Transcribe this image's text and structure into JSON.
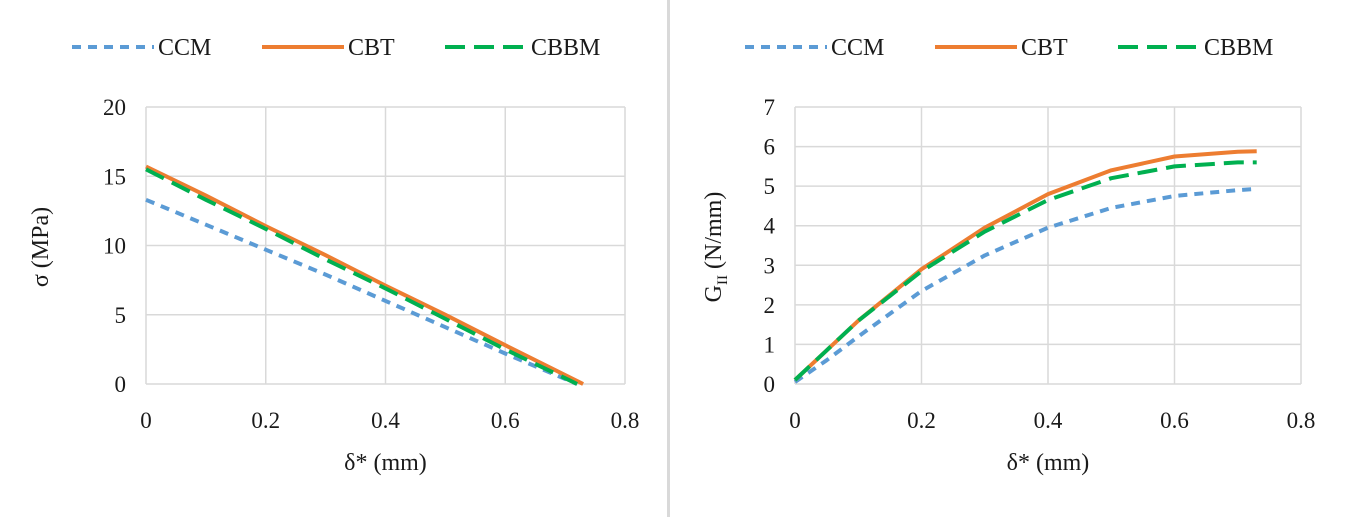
{
  "chart_data": [
    {
      "type": "line",
      "xlabel": "δ* (mm)",
      "ylabel": "σ (MPa)",
      "xlim": [
        0,
        0.8
      ],
      "ylim": [
        0,
        20
      ],
      "xticks": [
        "0",
        "0.2",
        "0.4",
        "0.6",
        "0.8"
      ],
      "yticks": [
        "0",
        "5",
        "10",
        "15",
        "20"
      ],
      "grid": true,
      "legend_position": "top",
      "series": [
        {
          "name": "CCM",
          "color": "#5b9bd5",
          "style": "dash",
          "x": [
            0,
            0.1,
            0.2,
            0.3,
            0.4,
            0.5,
            0.6,
            0.72
          ],
          "y": [
            13.3,
            11.5,
            9.7,
            7.9,
            6.0,
            4.1,
            2.2,
            0.0
          ]
        },
        {
          "name": "CBT",
          "color": "#ed7d31",
          "style": "solid",
          "x": [
            0,
            0.1,
            0.2,
            0.3,
            0.4,
            0.5,
            0.6,
            0.73
          ],
          "y": [
            15.7,
            13.6,
            11.4,
            9.3,
            7.1,
            5.0,
            2.8,
            0.0
          ]
        },
        {
          "name": "CBBM",
          "color": "#00b050",
          "style": "longdash",
          "x": [
            0,
            0.1,
            0.2,
            0.3,
            0.4,
            0.5,
            0.6,
            0.72
          ],
          "y": [
            15.5,
            13.3,
            11.2,
            9.0,
            6.9,
            4.7,
            2.5,
            0.0
          ]
        }
      ]
    },
    {
      "type": "line",
      "xlabel": "δ* (mm)",
      "ylabel_main": "G",
      "ylabel_sub": "II",
      "ylabel_unit": " (N/mm)",
      "xlim": [
        0,
        0.8
      ],
      "ylim": [
        0,
        7
      ],
      "xticks": [
        "0",
        "0.2",
        "0.4",
        "0.6",
        "0.8"
      ],
      "yticks": [
        "0",
        "1",
        "2",
        "3",
        "4",
        "5",
        "6",
        "7"
      ],
      "grid": true,
      "legend_position": "top",
      "series": [
        {
          "name": "CCM",
          "color": "#5b9bd5",
          "style": "dash",
          "x": [
            0,
            0.05,
            0.1,
            0.2,
            0.3,
            0.4,
            0.5,
            0.6,
            0.7,
            0.73
          ],
          "y": [
            0.05,
            0.6,
            1.2,
            2.35,
            3.25,
            3.95,
            4.45,
            4.75,
            4.9,
            4.93
          ]
        },
        {
          "name": "CBT",
          "color": "#ed7d31",
          "style": "solid",
          "x": [
            0,
            0.05,
            0.1,
            0.2,
            0.3,
            0.4,
            0.5,
            0.6,
            0.7,
            0.73
          ],
          "y": [
            0.1,
            0.85,
            1.6,
            2.9,
            3.95,
            4.8,
            5.4,
            5.75,
            5.87,
            5.88
          ]
        },
        {
          "name": "CBBM",
          "color": "#00b050",
          "style": "longdash",
          "x": [
            0,
            0.05,
            0.1,
            0.2,
            0.3,
            0.4,
            0.5,
            0.6,
            0.7,
            0.73
          ],
          "y": [
            0.1,
            0.85,
            1.6,
            2.85,
            3.85,
            4.65,
            5.2,
            5.5,
            5.6,
            5.6
          ]
        }
      ]
    }
  ]
}
